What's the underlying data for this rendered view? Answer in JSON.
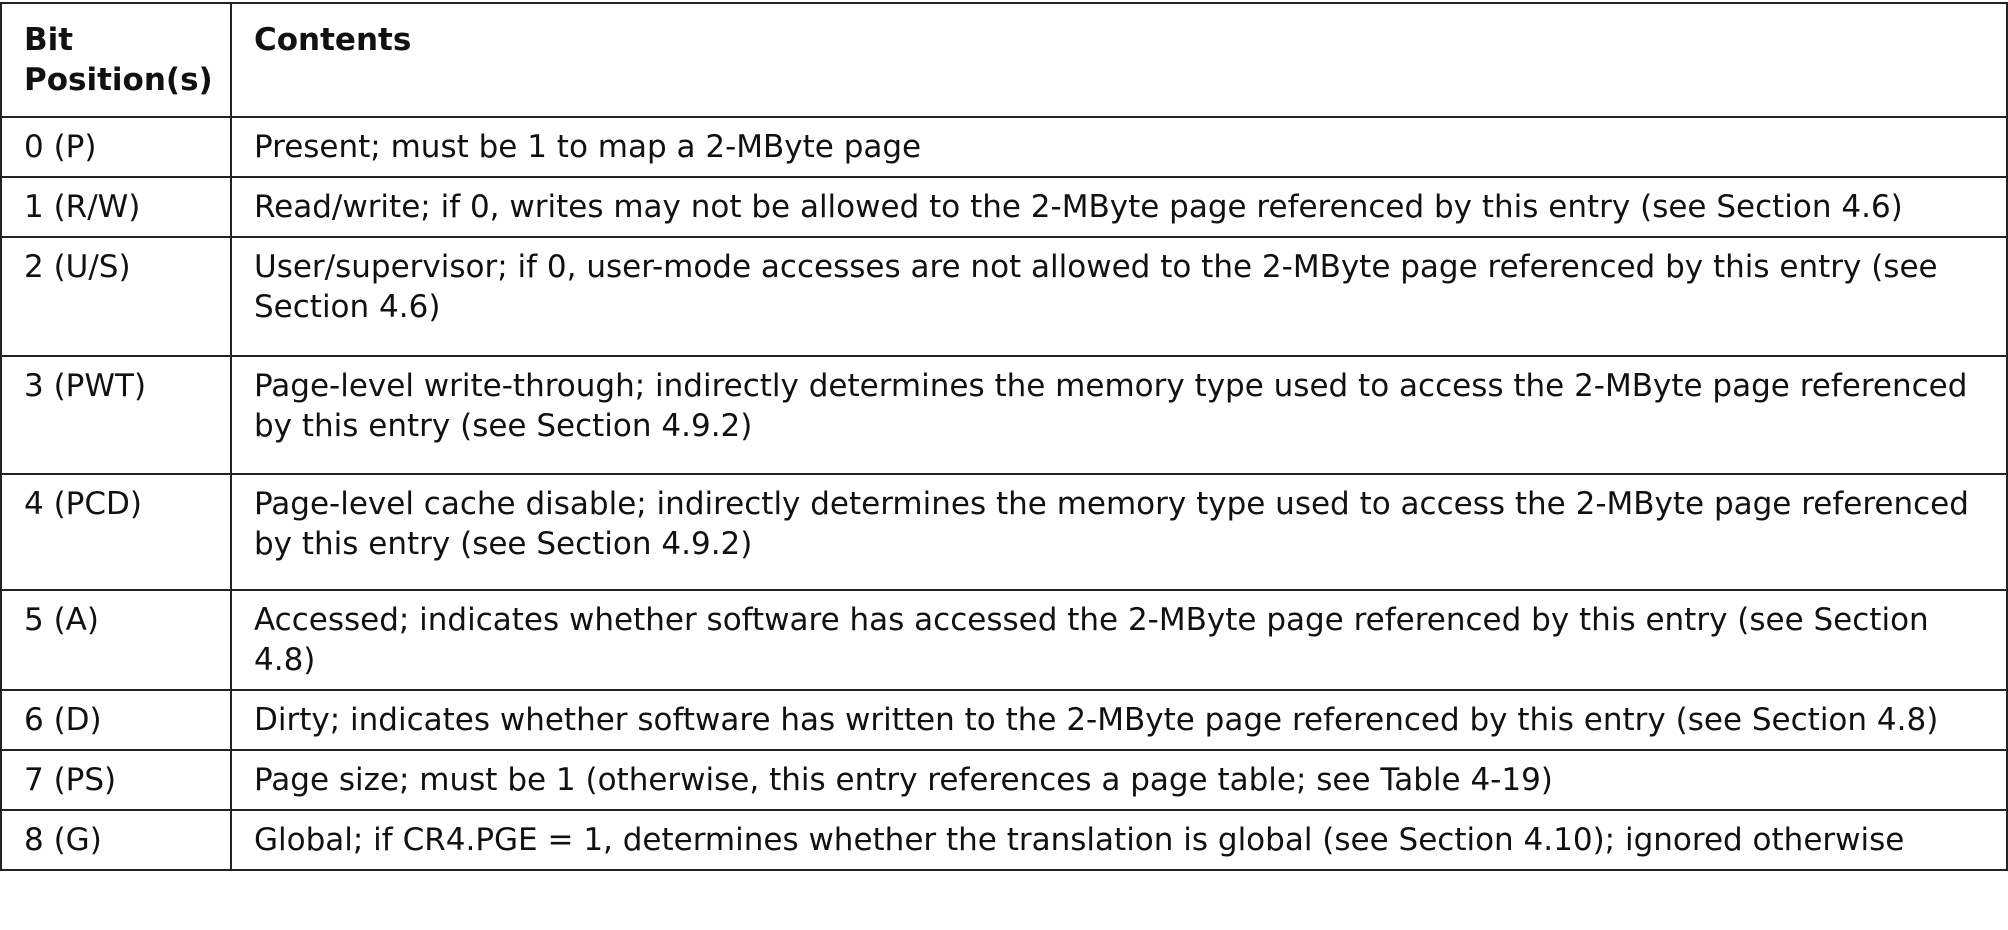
{
  "table": {
    "headers": {
      "bit_positions": "Bit Position(s)",
      "contents": "Contents"
    },
    "rows": [
      {
        "bit": "0 (P)",
        "contents": "Present; must be 1 to map a 2-MByte page"
      },
      {
        "bit": "1 (R/W)",
        "contents": "Read/write; if 0, writes may not be allowed to the 2-MByte page referenced by this entry (see Section 4.6)"
      },
      {
        "bit": "2 (U/S)",
        "contents": "User/supervisor; if 0, user-mode accesses are not allowed to the 2-MByte page referenced by this entry (see Section 4.6)"
      },
      {
        "bit": "3 (PWT)",
        "contents": "Page-level write-through; indirectly determines the memory type used to access the 2-MByte page referenced by this entry (see Section 4.9.2)"
      },
      {
        "bit": "4 (PCD)",
        "contents": "Page-level cache disable; indirectly determines the memory type used to access the 2-MByte page referenced by this entry (see Section 4.9.2)"
      },
      {
        "bit": "5 (A)",
        "contents": "Accessed; indicates whether software has accessed the 2-MByte page referenced by this entry (see Section 4.8)"
      },
      {
        "bit": "6 (D)",
        "contents": "Dirty; indicates whether software has written to the 2-MByte page referenced by this entry (see Section 4.8)"
      },
      {
        "bit": "7 (PS)",
        "contents": "Page size; must be 1 (otherwise, this entry references a page table; see Table 4-19)"
      },
      {
        "bit": "8 (G)",
        "contents": "Global; if CR4.PGE = 1, determines whether the translation is global (see Section 4.10); ignored otherwise"
      }
    ]
  }
}
